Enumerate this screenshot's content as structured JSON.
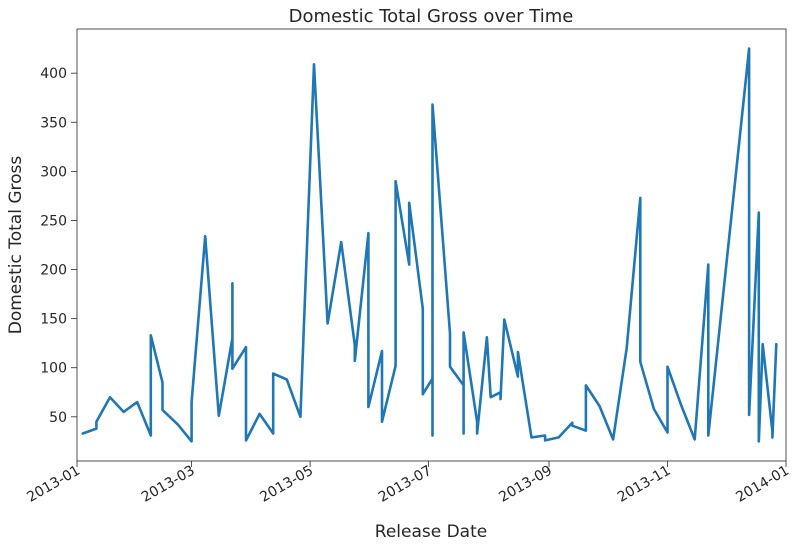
{
  "chart_data": {
    "type": "line",
    "title": "Domestic Total Gross over Time",
    "xlabel": "Release Date",
    "ylabel": "Domestic Total Gross",
    "x_axis_type": "date",
    "xlim": [
      "2013-01-01",
      "2014-01-01"
    ],
    "ylim": [
      5,
      445
    ],
    "x_ticks": [
      "2013-01",
      "2013-03",
      "2013-05",
      "2013-07",
      "2013-09",
      "2013-11",
      "2014-01"
    ],
    "y_ticks": [
      50,
      100,
      150,
      200,
      250,
      300,
      350,
      400
    ],
    "grid": false,
    "legend": "none",
    "line_color": "#1f77b4",
    "series": [
      {
        "x": [
          "2013-01-04",
          "2013-01-11",
          "2013-01-11",
          "2013-01-18",
          "2013-01-25",
          "2013-02-01",
          "2013-02-08",
          "2013-02-08",
          "2013-02-14",
          "2013-02-14",
          "2013-02-14",
          "2013-02-22",
          "2013-03-01",
          "2013-03-01",
          "2013-03-08",
          "2013-03-15",
          "2013-03-22",
          "2013-03-22",
          "2013-03-22",
          "2013-03-29",
          "2013-03-29",
          "2013-04-05",
          "2013-04-12",
          "2013-04-12",
          "2013-04-19",
          "2013-04-26",
          "2013-05-03",
          "2013-05-10",
          "2013-05-17",
          "2013-05-24",
          "2013-05-24",
          "2013-05-24",
          "2013-05-31",
          "2013-05-31",
          "2013-06-07",
          "2013-06-07",
          "2013-06-14",
          "2013-06-14",
          "2013-06-21",
          "2013-06-21",
          "2013-06-28",
          "2013-06-28",
          "2013-07-03",
          "2013-07-03",
          "2013-07-03",
          "2013-07-12",
          "2013-07-12",
          "2013-07-19",
          "2013-07-19",
          "2013-07-19",
          "2013-07-26",
          "2013-07-26",
          "2013-07-31",
          "2013-08-02",
          "2013-08-07",
          "2013-08-07",
          "2013-08-09",
          "2013-08-16",
          "2013-08-16",
          "2013-08-23",
          "2013-08-30",
          "2013-08-30",
          "2013-09-06",
          "2013-09-13",
          "2013-09-13",
          "2013-09-20",
          "2013-09-20",
          "2013-09-27",
          "2013-10-04",
          "2013-10-11",
          "2013-10-18",
          "2013-10-18",
          "2013-10-25",
          "2013-11-01",
          "2013-11-01",
          "2013-11-08",
          "2013-11-15",
          "2013-11-22",
          "2013-11-22",
          "2013-11-22",
          "2013-12-13",
          "2013-12-13",
          "2013-12-18",
          "2013-12-18",
          "2013-12-20",
          "2013-12-25",
          "2013-12-25",
          "2013-12-25",
          "2013-12-27"
        ],
        "y": [
          33,
          38,
          45,
          70,
          55,
          65,
          31,
          133,
          85,
          75,
          57,
          42,
          25,
          65,
          234,
          51,
          130,
          186,
          99,
          121,
          26,
          53,
          33,
          94,
          88,
          50,
          409,
          145,
          228,
          123,
          109,
          107,
          237,
          60,
          117,
          45,
          102,
          290,
          205,
          268,
          160,
          73,
          89,
          31,
          368,
          135,
          101,
          82,
          33,
          136,
          45,
          33,
          131,
          70,
          75,
          68,
          149,
          91,
          116,
          29,
          31,
          26,
          29,
          44,
          41,
          36,
          82,
          61,
          27,
          120,
          273,
          106,
          58,
          34,
          101,
          62,
          27,
          205,
          70,
          31,
          425,
          52,
          258,
          25,
          124,
          35,
          38,
          29,
          124
        ]
      }
    ]
  }
}
